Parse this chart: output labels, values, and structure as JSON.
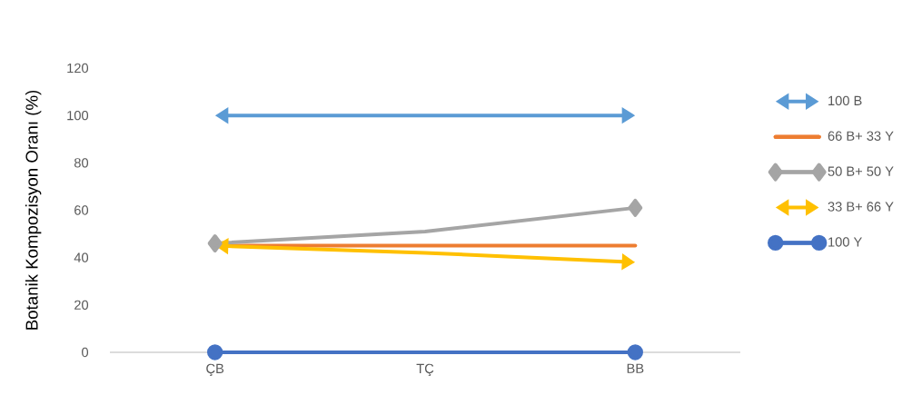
{
  "chart_data": {
    "type": "line",
    "ylabel": "Botanik Kompozisyon Oranı (%)",
    "categories": [
      "ÇB",
      "TÇ",
      "BB"
    ],
    "ylim": [
      0,
      120
    ],
    "yticks": [
      0,
      20,
      40,
      60,
      80,
      100,
      120
    ],
    "legend": "right",
    "series": [
      {
        "name": "100 B",
        "color": "#5b9bd5",
        "values": [
          100,
          100,
          100
        ]
      },
      {
        "name": "66 B+ 33 Y",
        "color": "#ed7d31",
        "marker": "none",
        "values": [
          45,
          45,
          45
        ]
      },
      {
        "name": "50 B+ 50 Y",
        "color": "#a5a5a5",
        "marker": "diamond",
        "values": [
          46,
          51,
          61
        ]
      },
      {
        "name": "33 B+ 66 Y",
        "color": "#ffc000",
        "values": [
          45,
          42,
          38
        ]
      },
      {
        "name": "100 Y",
        "color": "#4472c4",
        "marker": "circle",
        "values": [
          0,
          0,
          0
        ]
      }
    ]
  }
}
